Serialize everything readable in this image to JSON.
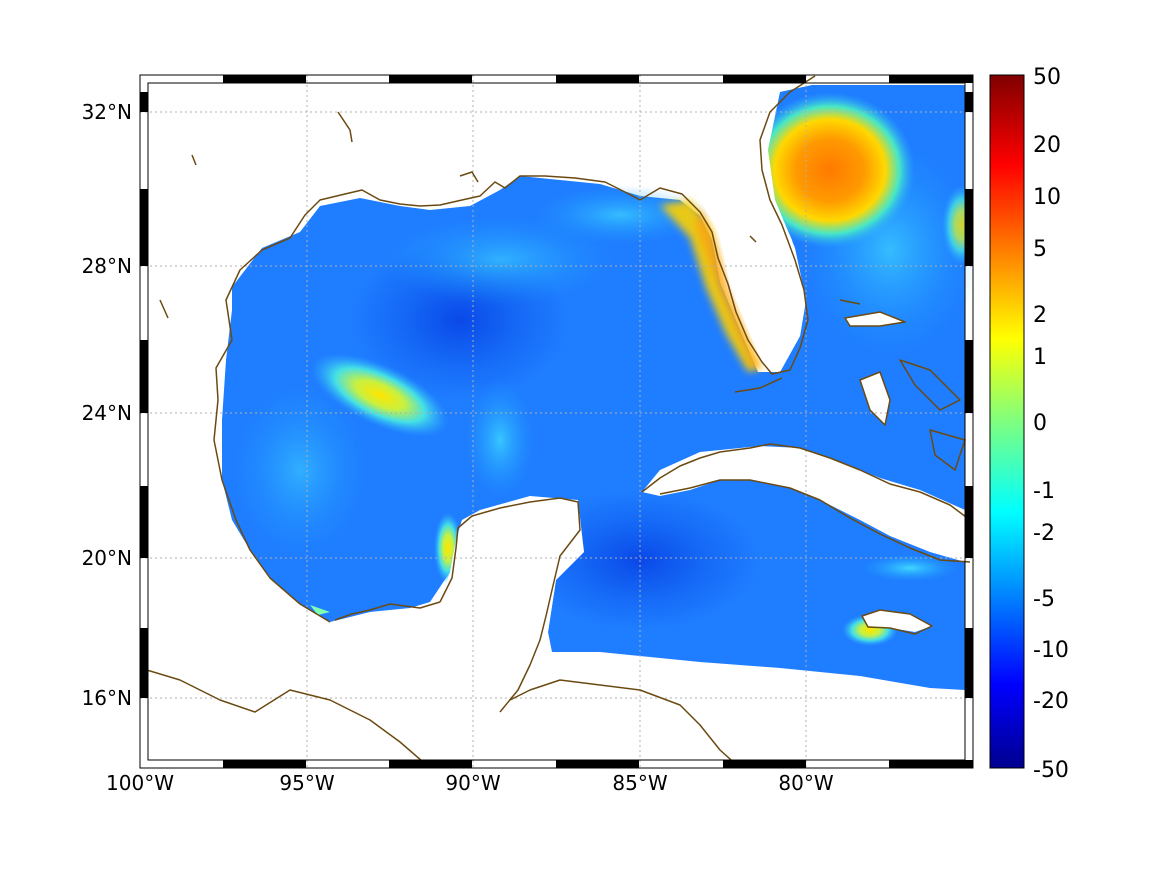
{
  "map": {
    "lon_labels": [
      "100°W",
      "95°W",
      "90°W",
      "85°W",
      "80°W"
    ],
    "lat_labels": [
      "32°N",
      "28°N",
      "24°N",
      "20°N",
      "16°N"
    ],
    "gridlines": true,
    "frame": "alternating black-white ticks",
    "coastline_color": "#6b4a12",
    "land_color": "#ffffff"
  },
  "colorbar": {
    "colormap": "jet",
    "labels": [
      "50",
      "20",
      "10",
      "5",
      "2",
      "1",
      "0",
      "-1",
      "-2",
      "-5",
      "-10",
      "-20",
      "-50"
    ],
    "placement": "right"
  },
  "chart_data": {
    "type": "heatmap",
    "title": "",
    "xlabel": "",
    "ylabel": "",
    "xlim": [
      -100,
      -75
    ],
    "ylim": [
      14.3,
      32.9
    ],
    "colorbar_range": [
      -50,
      50
    ],
    "features": [
      {
        "label": "warm anomaly off Georgia/Carolina coast",
        "lon": -79.5,
        "lat": 30.5,
        "value": 5
      },
      {
        "label": "western Gulf high",
        "lon": -92.8,
        "lat": 24.8,
        "value": 1
      },
      {
        "label": "Florida west shelf",
        "lon": -82.2,
        "lat": 26.8,
        "value": 1
      },
      {
        "label": "Bay of Campeche",
        "lon": -91.5,
        "lat": 20.2,
        "value": 0
      },
      {
        "label": "south of Jamaica",
        "lon": -78.5,
        "lat": 17.8,
        "value": 1
      },
      {
        "label": "central Gulf",
        "lon": -89.5,
        "lat": 26.5,
        "value": -10
      },
      {
        "label": "northwestern Caribbean",
        "lon": -84.5,
        "lat": 20.0,
        "value": -10
      }
    ]
  }
}
